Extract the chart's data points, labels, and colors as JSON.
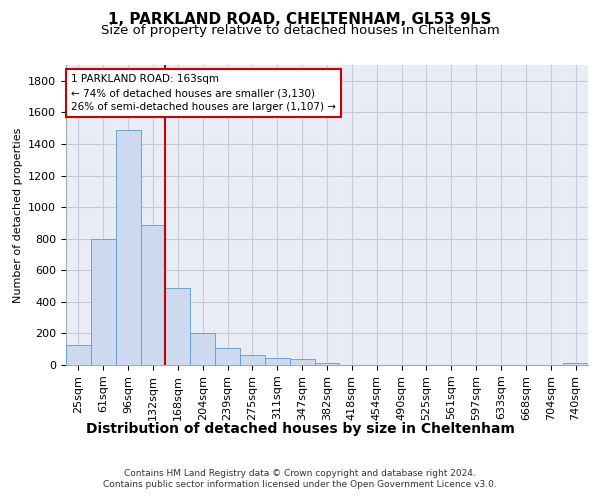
{
  "title1": "1, PARKLAND ROAD, CHELTENHAM, GL53 9LS",
  "title2": "Size of property relative to detached houses in Cheltenham",
  "xlabel": "Distribution of detached houses by size in Cheltenham",
  "ylabel": "Number of detached properties",
  "categories": [
    "25sqm",
    "61sqm",
    "96sqm",
    "132sqm",
    "168sqm",
    "204sqm",
    "239sqm",
    "275sqm",
    "311sqm",
    "347sqm",
    "382sqm",
    "418sqm",
    "454sqm",
    "490sqm",
    "525sqm",
    "561sqm",
    "597sqm",
    "633sqm",
    "668sqm",
    "704sqm",
    "740sqm"
  ],
  "values": [
    125,
    800,
    1490,
    885,
    490,
    205,
    105,
    65,
    45,
    35,
    15,
    0,
    0,
    0,
    0,
    0,
    0,
    0,
    0,
    0,
    15
  ],
  "bar_color": "#ccd9ee",
  "bar_edge_color": "#5b9bd5",
  "vline_color": "#cc0000",
  "vline_x": 3.5,
  "annotation_text": "1 PARKLAND ROAD: 163sqm\n← 74% of detached houses are smaller (3,130)\n26% of semi-detached houses are larger (1,107) →",
  "annotation_box_edgecolor": "#cc0000",
  "ylim_max": 1900,
  "yticks": [
    0,
    200,
    400,
    600,
    800,
    1000,
    1200,
    1400,
    1600,
    1800
  ],
  "grid_color": "#c8c8d8",
  "bg_color": "#e8edf5",
  "footer_line1": "Contains HM Land Registry data © Crown copyright and database right 2024.",
  "footer_line2": "Contains public sector information licensed under the Open Government Licence v3.0.",
  "title1_fontsize": 11,
  "title2_fontsize": 9.5,
  "xlabel_fontsize": 10,
  "ylabel_fontsize": 8,
  "tick_fontsize": 8,
  "footer_fontsize": 6.5,
  "ann_fontsize": 7.5
}
